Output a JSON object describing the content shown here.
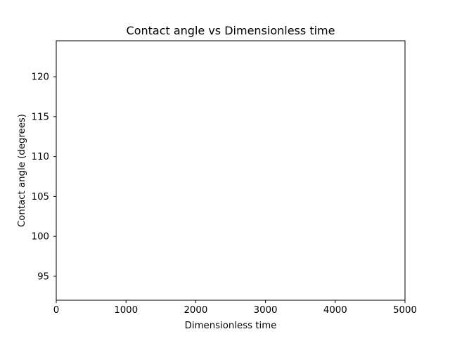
{
  "chart_data": {
    "type": "line",
    "title": "Contact angle vs Dimensionless time",
    "xlabel": "Dimensionless time",
    "ylabel": "Contact angle (degrees)",
    "xlim": [
      0,
      5000
    ],
    "ylim": [
      92,
      124.5
    ],
    "xticks": [
      0,
      1000,
      2000,
      3000,
      4000,
      5000
    ],
    "yticks": [
      95,
      100,
      105,
      110,
      115,
      120
    ],
    "grid": false,
    "series": []
  }
}
